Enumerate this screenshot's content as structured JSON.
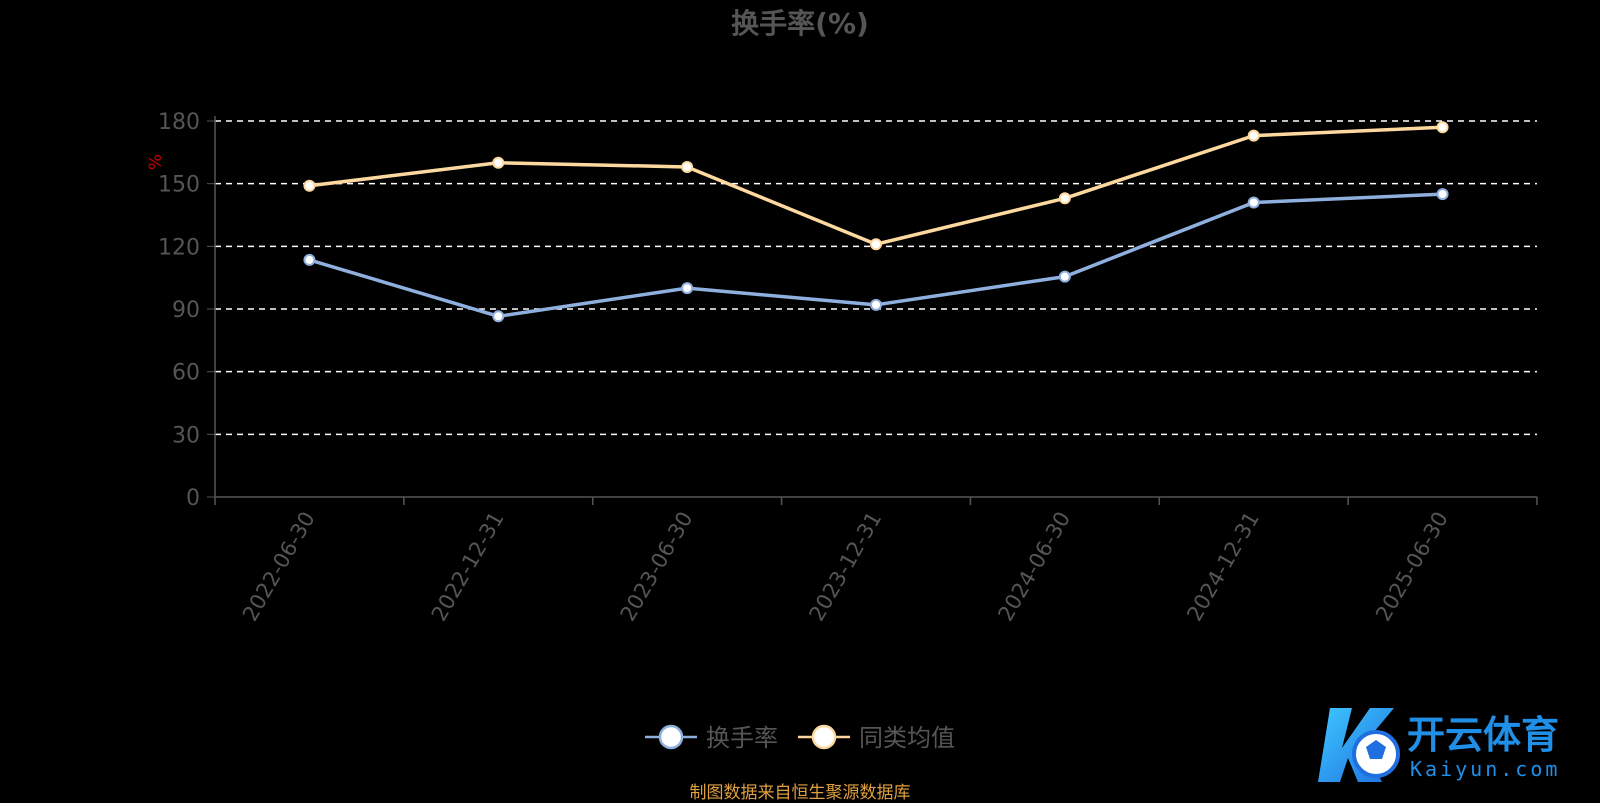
{
  "source_note": "制图数据来自恒生聚源数据库",
  "watermark": {
    "brand_cn": "开云体育",
    "brand_en": "Kaiyun.com"
  },
  "colors": {
    "background": "#000000",
    "title": "#555555",
    "axis_text": "#555555",
    "unit_label": "#cc0000",
    "grid": "#ffffff",
    "series_turnover": "#8fb0df",
    "series_average": "#fdd9a0",
    "source_note": "#e0a040"
  },
  "chart_data": {
    "type": "line",
    "title": "换手率(%)",
    "ylabel": "%",
    "xlabel": "",
    "x": [
      "2022-06-30",
      "2022-12-31",
      "2023-06-30",
      "2023-12-31",
      "2024-06-30",
      "2024-12-31",
      "2025-06-30"
    ],
    "ylim": [
      0,
      180
    ],
    "yticks": [
      0,
      30,
      60,
      90,
      120,
      150,
      180
    ],
    "grid": true,
    "legend_position": "bottom-center",
    "series": [
      {
        "name": "换手率",
        "color": "#8fb0df",
        "values": [
          113.5,
          86.5,
          100.0,
          92.0,
          105.5,
          141.0,
          145.0
        ]
      },
      {
        "name": "同类均值",
        "color": "#fdd9a0",
        "values": [
          149.0,
          160.0,
          158.0,
          121.0,
          143.0,
          173.0,
          177.0
        ]
      }
    ]
  }
}
